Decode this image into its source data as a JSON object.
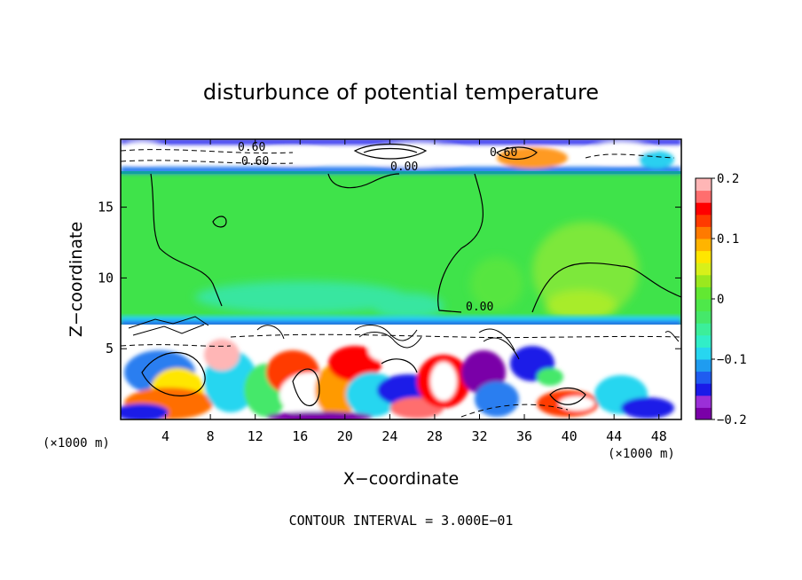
{
  "chart_data": {
    "type": "heatmap",
    "title": "disturbunce of potential temperature",
    "xlabel": "X−coordinate",
    "ylabel": "Z−coordinate",
    "x_unit_left": "(×1000 m)",
    "x_unit_right": "(×1000 m)",
    "xlim": [
      0,
      50
    ],
    "ylim": [
      0,
      19.8
    ],
    "xticks": [
      4,
      8,
      12,
      16,
      20,
      24,
      28,
      32,
      36,
      40,
      44,
      48
    ],
    "yticks": [
      5,
      10,
      15
    ],
    "colorbar": {
      "range": [
        -0.2,
        0.2
      ],
      "tick_labels": [
        "0.2",
        "0.1",
        "0",
        "−0.1",
        "−0.2"
      ],
      "tick_values": [
        0.2,
        0.1,
        0,
        -0.1,
        -0.2
      ],
      "colors": [
        "#7a00a8",
        "#9b2fd8",
        "#1a1ae8",
        "#1f5cf0",
        "#1f9cf0",
        "#27d6f0",
        "#31eec8",
        "#3cee9a",
        "#45e86a",
        "#4ee84a",
        "#62e832",
        "#9be81e",
        "#d8f01a",
        "#ffe600",
        "#ffb400",
        "#ff7a00",
        "#ff3a00",
        "#ff0000",
        "#ff6e6e",
        "#ffb6b6"
      ]
    },
    "contour_labels": [
      "0.60",
      "0.00",
      "0.60",
      "0.00",
      "0.60"
    ],
    "footnote": "CONTOUR INTERVAL = 3.000E−01"
  }
}
